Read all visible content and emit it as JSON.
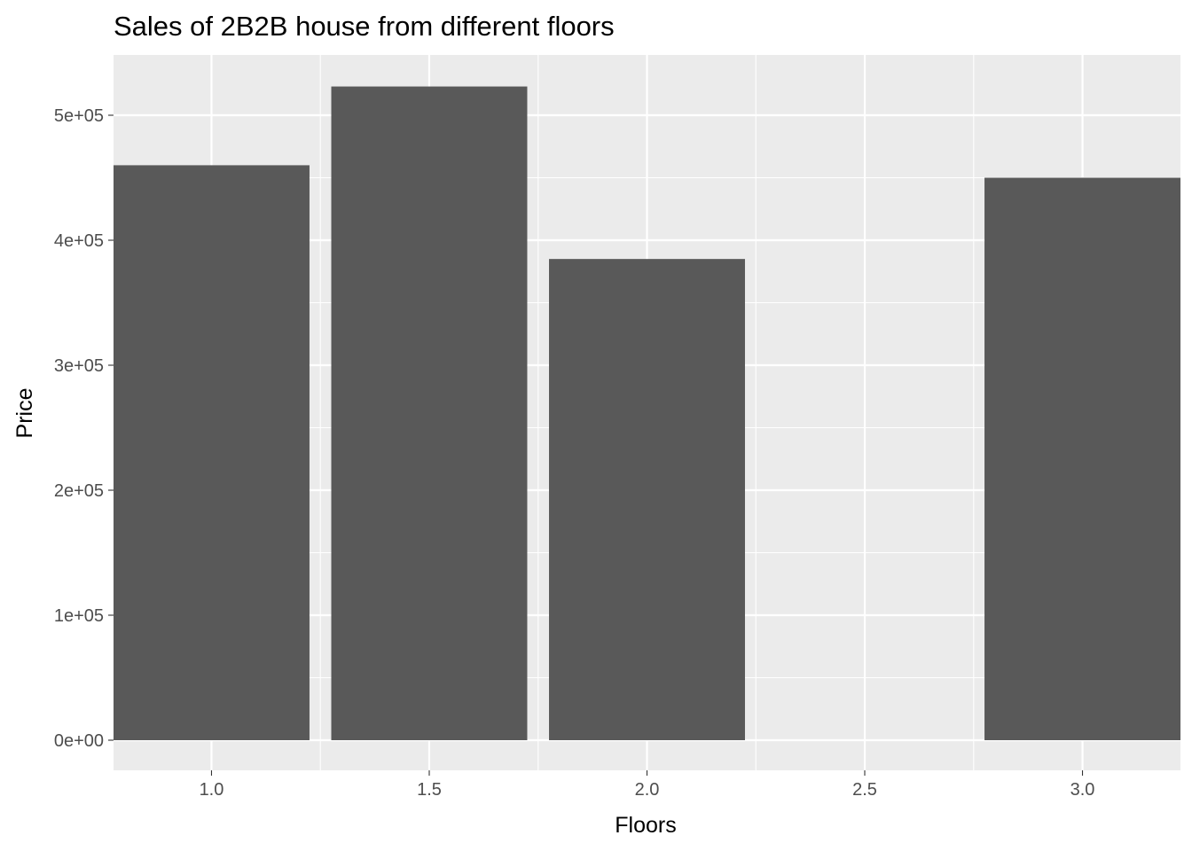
{
  "chart_data": {
    "type": "bar",
    "title": "Sales of 2B2B house from different floors",
    "xlabel": "Floors",
    "ylabel": "Price",
    "x": [
      1.0,
      1.5,
      2.0,
      3.0
    ],
    "values": [
      460000,
      523000,
      385000,
      450000
    ],
    "bar_width": 0.45,
    "xlim": [
      0.775,
      3.225
    ],
    "ylim": [
      0,
      523000
    ],
    "x_ticks": [
      1.0,
      1.5,
      2.0,
      2.5,
      3.0
    ],
    "x_tick_labels": [
      "1.0",
      "1.5",
      "2.0",
      "2.5",
      "3.0"
    ],
    "y_ticks": [
      0,
      100000,
      200000,
      300000,
      400000,
      500000
    ],
    "y_tick_labels": [
      "0e+00",
      "1e+05",
      "2e+05",
      "3e+05",
      "4e+05",
      "5e+05"
    ],
    "grid": true,
    "legend": "none",
    "colors": {
      "bar": "#595959",
      "panel_background": "#ebebeb",
      "grid_line": "#ffffff",
      "tick_label": "#4d4d4d",
      "tick_mark": "#333333"
    }
  }
}
